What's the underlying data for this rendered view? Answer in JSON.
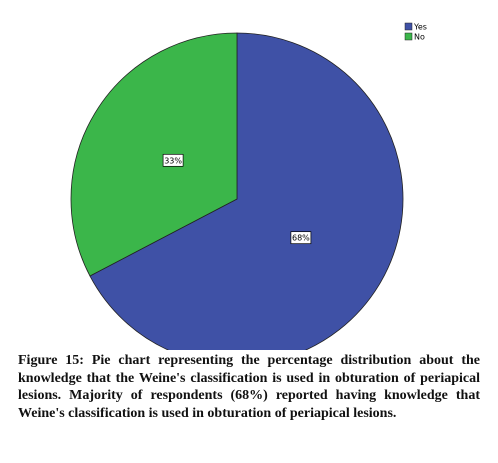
{
  "chart_data": {
    "type": "pie",
    "categories": [
      "Yes",
      "No"
    ],
    "values": [
      68,
      33
    ],
    "value_labels": [
      "68%",
      "33%"
    ],
    "colors": [
      "#3f51a6",
      "#3bb64a"
    ],
    "legend": "top-right"
  },
  "caption": "Figure 15: Pie chart representing the percentage distribution about the knowledge that the Weine's classification is used in obturation of periapical lesions. Majority of respondents (68%) reported having knowledge that Weine's classification is used in obturation of periapical lesions."
}
